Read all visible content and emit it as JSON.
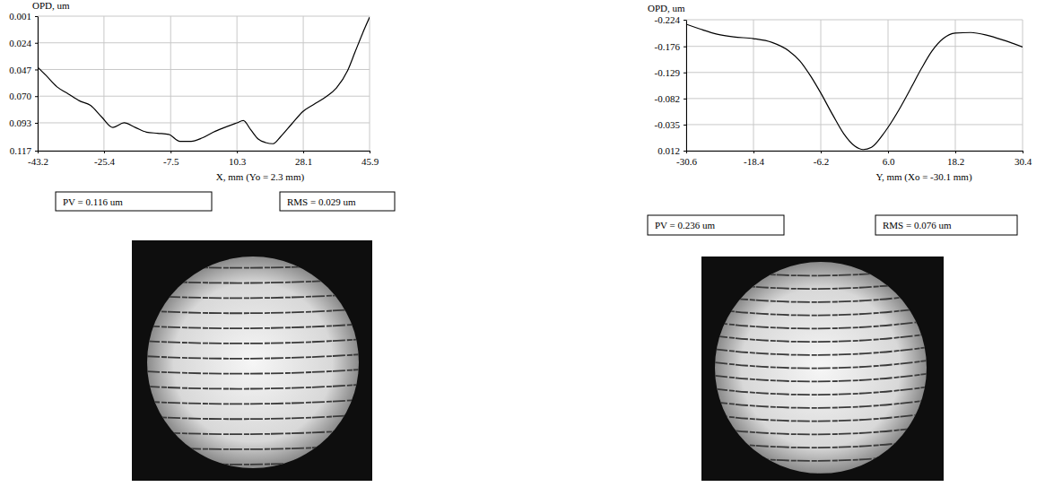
{
  "chart_data": [
    {
      "type": "line",
      "y_label": "OPD, um",
      "x_label": "X, mm (Yo = 2.3 mm)",
      "xlim": [
        -43.2,
        45.9
      ],
      "xticks": [
        -43.2,
        -25.4,
        -7.5,
        10.3,
        28.1,
        45.9
      ],
      "ylim": [
        0.117,
        0.001
      ],
      "yticks": [
        0.001,
        0.024,
        0.047,
        {
          "value": 0.07,
          "label": "0.070"
        },
        0.093,
        0.117
      ],
      "grid": true,
      "color": "#000000",
      "x": [
        -43.2,
        -41,
        -38,
        -35,
        -32,
        -29,
        -26,
        -23,
        -20,
        -17,
        -14,
        -11,
        -8,
        -5,
        -2,
        1,
        4,
        7,
        10.3,
        12,
        14,
        16,
        18,
        20,
        22,
        25,
        28.1,
        31,
        34,
        37,
        40,
        42,
        44,
        45.9
      ],
      "values": [
        0.045,
        0.052,
        0.062,
        0.068,
        0.074,
        0.078,
        0.088,
        0.097,
        0.093,
        0.097,
        0.101,
        0.102,
        0.103,
        0.109,
        0.109,
        0.106,
        0.101,
        0.097,
        0.093,
        0.091,
        0.099,
        0.107,
        0.11,
        0.111,
        0.105,
        0.094,
        0.083,
        0.077,
        0.071,
        0.063,
        0.048,
        0.032,
        0.016,
        0.002
      ],
      "annotations": [
        "PV = 0.116 um",
        "RMS = 0.029 um"
      ]
    },
    {
      "type": "line",
      "y_label": "OPD, um",
      "x_label": "Y, mm (Xo = -30.1 mm)",
      "xlim": [
        -30.6,
        30.4
      ],
      "xticks": [
        -30.6,
        -18.4,
        -6.2,
        {
          "value": 6,
          "label": "6.0"
        },
        18.2,
        30.4
      ],
      "ylim": [
        0.012,
        -0.224
      ],
      "yticks": [
        -0.224,
        -0.176,
        -0.129,
        -0.082,
        -0.035,
        0.012
      ],
      "grid": true,
      "color": "#000000",
      "x": [
        -30.6,
        -28,
        -25,
        -22,
        -18.4,
        -15,
        -12,
        -10,
        -8,
        -6.2,
        -4,
        -2,
        0,
        1.5,
        3,
        5,
        6,
        8,
        10,
        12,
        14,
        16,
        18.2,
        21,
        24,
        27,
        30.4
      ],
      "values": [
        -0.216,
        -0.207,
        -0.198,
        -0.193,
        -0.19,
        -0.183,
        -0.168,
        -0.15,
        -0.122,
        -0.092,
        -0.052,
        -0.018,
        0.004,
        0.01,
        0.006,
        -0.016,
        -0.03,
        -0.062,
        -0.098,
        -0.135,
        -0.168,
        -0.19,
        -0.2,
        -0.201,
        -0.196,
        -0.187,
        -0.175
      ],
      "annotations": [
        "PV = 0.236 um",
        "RMS = 0.076 um"
      ]
    }
  ]
}
